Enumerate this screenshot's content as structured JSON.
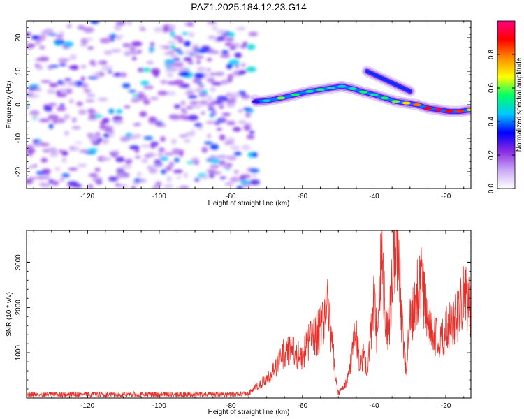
{
  "chart_data": [
    {
      "type": "heatmap",
      "title": "PAZ1.2025.184.12.23.G14",
      "xlabel": "Height of straight line (km)",
      "ylabel": "Frequency (Hz)",
      "xlim": [
        -137,
        -13
      ],
      "ylim": [
        -25,
        25
      ],
      "xticks": [
        "-120",
        "-100",
        "-80",
        "-60",
        "-40",
        "-20"
      ],
      "yticks": [
        "-20",
        "-10",
        "0",
        "10",
        "20"
      ],
      "colorbar": {
        "label": "Normalized spectral amplitude",
        "range": [
          0,
          1
        ],
        "ticks": [
          "0.0",
          "0.2",
          "0.4",
          "0.6",
          "0.8"
        ],
        "colormap": [
          "#ffffff",
          "#c9a8f5",
          "#8a2be2",
          "#0000ff",
          "#00c8ff",
          "#00ff66",
          "#ffff00",
          "#ff8c00",
          "#ff0000",
          "#ff0080"
        ]
      },
      "ridge": {
        "x": [
          -73,
          -70,
          -66,
          -62,
          -58,
          -55,
          -52,
          -49,
          -46,
          -43,
          -40,
          -37,
          -34,
          -31,
          -28,
          -25,
          -22,
          -19,
          -16,
          -13
        ],
        "freq": [
          1,
          1.2,
          2,
          3,
          4,
          4.5,
          5,
          5.5,
          4.8,
          3.8,
          3,
          2,
          1,
          0.5,
          0,
          -1,
          -1.5,
          -2,
          -2,
          -1.5
        ],
        "amplitude": [
          0.3,
          0.45,
          0.6,
          0.55,
          0.5,
          0.55,
          0.5,
          0.45,
          0.5,
          0.55,
          0.5,
          0.55,
          0.6,
          0.7,
          0.8,
          0.9,
          0.95,
          0.9,
          0.85,
          0.7
        ]
      },
      "branch": {
        "x": [
          -42,
          -38,
          -34,
          -30
        ],
        "freq": [
          10,
          8,
          6,
          4
        ],
        "amplitude": [
          0.25,
          0.25,
          0.25,
          0.2
        ]
      }
    },
    {
      "type": "line",
      "xlabel": "Height of straight line (km)",
      "ylabel": "SNR (10 * v/v)",
      "xlim": [
        -137,
        -13
      ],
      "ylim": [
        0,
        3700
      ],
      "xticks": [
        "-120",
        "-100",
        "-80",
        "-60",
        "-40",
        "-20"
      ],
      "yticks": [
        "1000",
        "2000",
        "3000"
      ],
      "color": "#e8302a",
      "series": [
        {
          "x": [
            -137,
            -130,
            -120,
            -110,
            -100,
            -90,
            -80,
            -75,
            -72,
            -70,
            -68,
            -66,
            -64,
            -62,
            -60,
            -58,
            -56,
            -54,
            -53,
            -52,
            -51,
            -50,
            -49,
            -48,
            -47,
            -46,
            -45,
            -44,
            -43,
            -42,
            -41,
            -40,
            -39,
            -38,
            -37,
            -36,
            -35,
            -34,
            -33.5,
            -33,
            -32,
            -31,
            -30,
            -29,
            -28,
            -27,
            -26,
            -25,
            -24,
            -23,
            -22,
            -21,
            -20,
            -19,
            -18,
            -17,
            -16,
            -15,
            -14,
            -13
          ],
          "y": [
            80,
            80,
            80,
            80,
            80,
            80,
            80,
            100,
            300,
            400,
            600,
            900,
            1100,
            1000,
            900,
            1300,
            1400,
            1800,
            2000,
            1500,
            600,
            100,
            200,
            300,
            500,
            1200,
            1500,
            700,
            900,
            600,
            1400,
            2100,
            1200,
            3100,
            1900,
            1500,
            2600,
            3000,
            3700,
            2600,
            1300,
            500,
            2200,
            1800,
            2300,
            2600,
            2200,
            1600,
            1500,
            1400,
            1200,
            1300,
            1500,
            1600,
            1800,
            1700,
            2000,
            2400,
            2200,
            1800
          ]
        }
      ]
    }
  ]
}
